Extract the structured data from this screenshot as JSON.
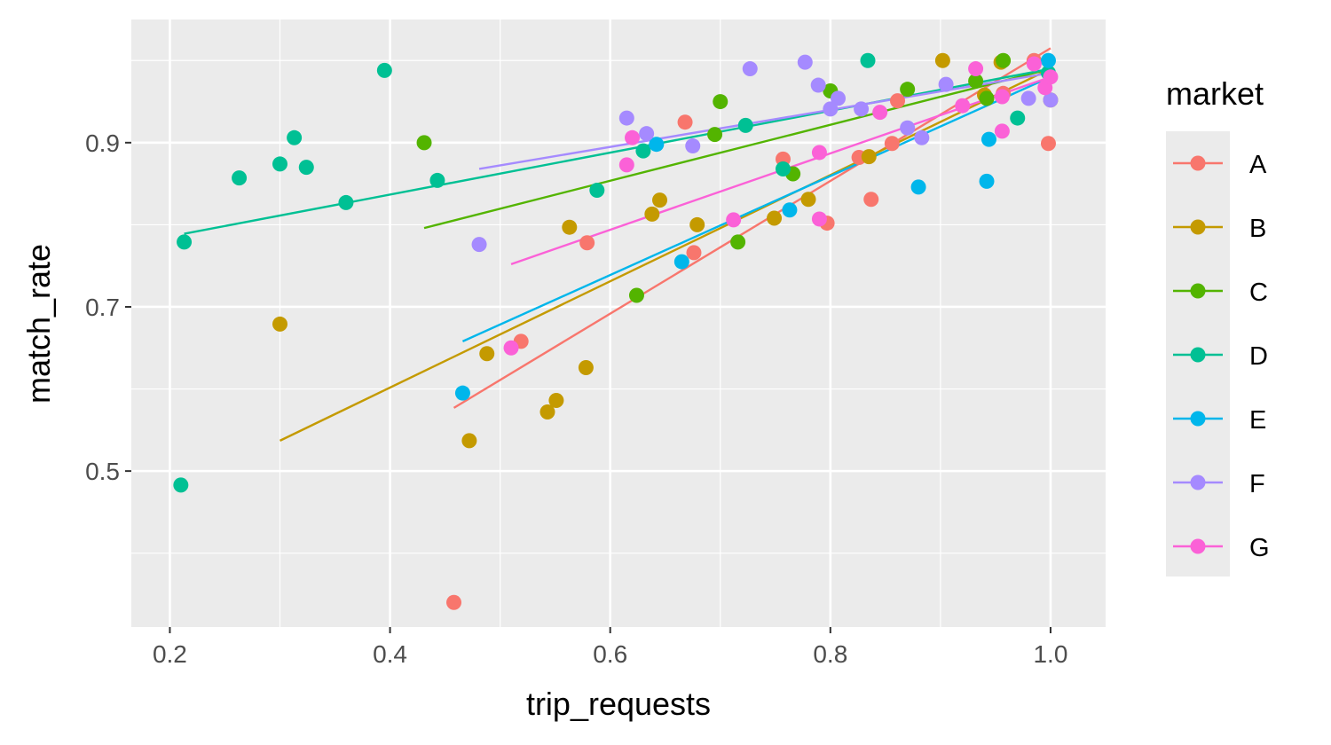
{
  "chart_data": {
    "type": "scatter",
    "xlabel": "trip_requests",
    "ylabel": "match_rate",
    "xlim": [
      0.165,
      1.05
    ],
    "ylim": [
      0.31,
      1.05
    ],
    "x_ticks": [
      0.2,
      0.4,
      0.6,
      0.8,
      1.0
    ],
    "x_tick_labels": [
      "0.2",
      "0.4",
      "0.6",
      "0.8",
      "1.0"
    ],
    "x_minor_ticks": [
      0.3,
      0.5,
      0.7,
      0.9
    ],
    "y_ticks": [
      0.5,
      0.7,
      0.9
    ],
    "y_tick_labels": [
      "0.5",
      "0.7",
      "0.9"
    ],
    "y_minor_ticks": [
      0.4,
      0.6,
      0.8,
      1.0
    ],
    "grid": true,
    "panel_background": "#ebebeb",
    "legend": {
      "title": "market",
      "position": "right"
    },
    "series": [
      {
        "name": "A",
        "color": "#F8766D",
        "points": [
          [
            0.458,
            0.34
          ],
          [
            0.519,
            0.658
          ],
          [
            0.579,
            0.778
          ],
          [
            0.668,
            0.925
          ],
          [
            0.676,
            0.766
          ],
          [
            0.757,
            0.88
          ],
          [
            0.797,
            0.802
          ],
          [
            0.826,
            0.882
          ],
          [
            0.837,
            0.831
          ],
          [
            0.856,
            0.899
          ],
          [
            0.861,
            0.951
          ],
          [
            0.957,
            0.96
          ],
          [
            0.985,
            1.0
          ],
          [
            0.998,
            0.899
          ]
        ],
        "fit": [
          [
            0.458,
            0.577
          ],
          [
            1.0,
            1.015
          ]
        ]
      },
      {
        "name": "B",
        "color": "#C49A00",
        "points": [
          [
            0.3,
            0.679
          ],
          [
            0.472,
            0.537
          ],
          [
            0.488,
            0.643
          ],
          [
            0.543,
            0.572
          ],
          [
            0.551,
            0.586
          ],
          [
            0.563,
            0.797
          ],
          [
            0.578,
            0.626
          ],
          [
            0.638,
            0.813
          ],
          [
            0.645,
            0.83
          ],
          [
            0.679,
            0.8
          ],
          [
            0.749,
            0.808
          ],
          [
            0.78,
            0.831
          ],
          [
            0.835,
            0.883
          ],
          [
            0.902,
            1.0
          ],
          [
            0.94,
            0.958
          ],
          [
            0.955,
            0.998
          ],
          [
            1.0,
            0.952
          ]
        ],
        "fit": [
          [
            0.3,
            0.537
          ],
          [
            1.0,
            0.99
          ]
        ]
      },
      {
        "name": "C",
        "color": "#53B400",
        "points": [
          [
            0.431,
            0.9
          ],
          [
            0.624,
            0.714
          ],
          [
            0.695,
            0.91
          ],
          [
            0.7,
            0.95
          ],
          [
            0.716,
            0.779
          ],
          [
            0.766,
            0.862
          ],
          [
            0.8,
            0.963
          ],
          [
            0.87,
            0.965
          ],
          [
            0.932,
            0.975
          ],
          [
            0.942,
            0.954
          ],
          [
            0.957,
            1.0
          ]
        ],
        "fit": [
          [
            0.431,
            0.796
          ],
          [
            1.0,
            0.99
          ]
        ]
      },
      {
        "name": "D",
        "color": "#00C094",
        "points": [
          [
            0.21,
            0.483
          ],
          [
            0.213,
            0.779
          ],
          [
            0.263,
            0.857
          ],
          [
            0.3,
            0.874
          ],
          [
            0.313,
            0.906
          ],
          [
            0.324,
            0.87
          ],
          [
            0.36,
            0.827
          ],
          [
            0.395,
            0.988
          ],
          [
            0.443,
            0.854
          ],
          [
            0.588,
            0.842
          ],
          [
            0.63,
            0.89
          ],
          [
            0.723,
            0.921
          ],
          [
            0.757,
            0.868
          ],
          [
            0.834,
            1.0
          ],
          [
            0.97,
            0.93
          ],
          [
            0.998,
            0.985
          ]
        ],
        "fit": [
          [
            0.213,
            0.789
          ],
          [
            1.0,
            0.99
          ]
        ]
      },
      {
        "name": "E",
        "color": "#00B6EB",
        "points": [
          [
            0.466,
            0.595
          ],
          [
            0.642,
            0.898
          ],
          [
            0.665,
            0.755
          ],
          [
            0.763,
            0.818
          ],
          [
            0.88,
            0.846
          ],
          [
            0.942,
            0.853
          ],
          [
            0.944,
            0.904
          ],
          [
            0.998,
            1.0
          ]
        ],
        "fit": [
          [
            0.466,
            0.658
          ],
          [
            1.0,
            0.98
          ]
        ]
      },
      {
        "name": "F",
        "color": "#A58AFF",
        "points": [
          [
            0.481,
            0.776
          ],
          [
            0.615,
            0.93
          ],
          [
            0.633,
            0.911
          ],
          [
            0.675,
            0.896
          ],
          [
            0.727,
            0.99
          ],
          [
            0.777,
            0.998
          ],
          [
            0.789,
            0.97
          ],
          [
            0.8,
            0.941
          ],
          [
            0.807,
            0.954
          ],
          [
            0.828,
            0.941
          ],
          [
            0.87,
            0.918
          ],
          [
            0.883,
            0.906
          ],
          [
            0.905,
            0.971
          ],
          [
            0.98,
            0.954
          ],
          [
            1.0,
            0.952
          ]
        ],
        "fit": [
          [
            0.481,
            0.868
          ],
          [
            1.0,
            0.985
          ]
        ]
      },
      {
        "name": "G",
        "color": "#FB61D7",
        "points": [
          [
            0.51,
            0.65
          ],
          [
            0.615,
            0.873
          ],
          [
            0.62,
            0.906
          ],
          [
            0.712,
            0.806
          ],
          [
            0.79,
            0.888
          ],
          [
            0.79,
            0.807
          ],
          [
            0.845,
            0.937
          ],
          [
            0.92,
            0.945
          ],
          [
            0.932,
            0.99
          ],
          [
            0.956,
            0.914
          ],
          [
            0.956,
            0.956
          ],
          [
            0.985,
            0.996
          ],
          [
            0.995,
            0.967
          ],
          [
            1.0,
            0.98
          ]
        ],
        "fit": [
          [
            0.51,
            0.752
          ],
          [
            1.0,
            0.98
          ]
        ]
      }
    ]
  }
}
